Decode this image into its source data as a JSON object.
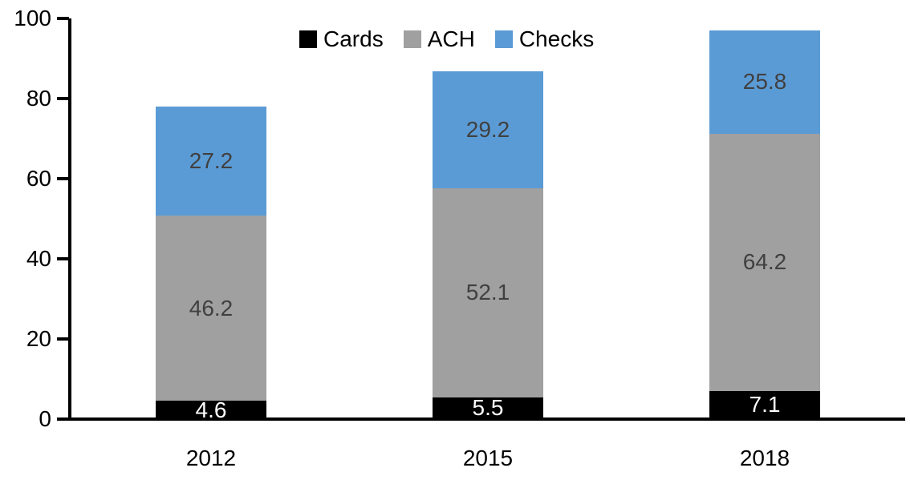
{
  "chart_data": {
    "type": "bar",
    "subtype": "stacked",
    "title": "",
    "xlabel": "",
    "ylabel": "",
    "categories": [
      "2012",
      "2015",
      "2018"
    ],
    "series": [
      {
        "name": "Cards",
        "color": "#000000",
        "label_color": "#ffffff",
        "values": [
          4.6,
          5.5,
          7.1
        ]
      },
      {
        "name": "ACH",
        "color": "#A0A0A0",
        "label_color": "#404040",
        "values": [
          46.2,
          52.1,
          64.2
        ]
      },
      {
        "name": "Checks",
        "color": "#5B9BD5",
        "label_color": "#404040",
        "values": [
          27.2,
          29.2,
          25.8
        ]
      }
    ],
    "ylim": [
      0,
      100
    ],
    "yticks": [
      0,
      20,
      40,
      60,
      80,
      100
    ],
    "grid": false,
    "legend_position": "top",
    "axis_color": "#000000"
  }
}
